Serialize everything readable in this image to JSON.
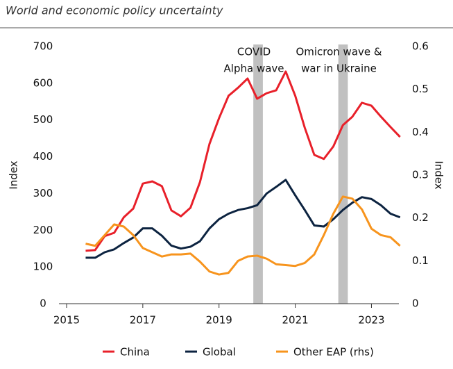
{
  "chart_data": {
    "type": "line",
    "title": "World and economic policy uncertainty",
    "ylabel": "Index",
    "y2label": "Index",
    "x": [
      2015.5,
      2015.75,
      2016,
      2016.25,
      2016.5,
      2016.75,
      2017,
      2017.25,
      2017.5,
      2017.75,
      2018,
      2018.25,
      2018.5,
      2018.75,
      2019,
      2019.25,
      2019.5,
      2019.75,
      2020,
      2020.25,
      2020.5,
      2020.75,
      2021,
      2021.25,
      2021.5,
      2021.75,
      2022,
      2022.25,
      2022.5,
      2022.75,
      2023,
      2023.25,
      2023.5,
      2023.75
    ],
    "series": [
      {
        "name": "China",
        "color": "#e8202a",
        "values": [
          144,
          146,
          184,
          193,
          235,
          259,
          327,
          333,
          320,
          254,
          238,
          261,
          331,
          435,
          505,
          566,
          588,
          613,
          558,
          573,
          581,
          632,
          566,
          479,
          405,
          394,
          428,
          486,
          509,
          547,
          539,
          509,
          481,
          454
        ]
      },
      {
        "name": "Global",
        "color": "#0c2340",
        "values": [
          125,
          125,
          140,
          148,
          165,
          180,
          205,
          205,
          185,
          158,
          150,
          155,
          170,
          205,
          230,
          245,
          255,
          260,
          268,
          300,
          318,
          337,
          295,
          255,
          213,
          210,
          230,
          255,
          275,
          290,
          285,
          268,
          245,
          235
        ]
      },
      {
        "name": "Other EAP (rhs)",
        "color": "#f7941d",
        "axis": "y2",
        "values": [
          0.14,
          0.135,
          0.16,
          0.185,
          0.18,
          0.16,
          0.13,
          0.12,
          0.11,
          0.115,
          0.115,
          0.117,
          0.098,
          0.075,
          0.068,
          0.072,
          0.1,
          0.11,
          0.112,
          0.105,
          0.092,
          0.09,
          0.088,
          0.095,
          0.115,
          0.16,
          0.21,
          0.25,
          0.245,
          0.22,
          0.175,
          0.16,
          0.155,
          0.135
        ]
      }
    ],
    "shaded_regions": [
      {
        "x": [
          2019.9,
          2020.15
        ],
        "color": "#c0c0c0",
        "label": [
          "COVID",
          "Alpha wave"
        ]
      },
      {
        "x": [
          2022.13,
          2022.38
        ],
        "color": "#c0c0c0",
        "label": [
          "Omicron wave &",
          "war in Ukraine"
        ]
      }
    ],
    "xlim": [
      2014.8,
      2023.72
    ],
    "xticks": [
      2015,
      2017,
      2019,
      2021,
      2023
    ],
    "ylim": [
      0,
      700
    ],
    "yticks": [
      0,
      100,
      200,
      300,
      400,
      500,
      600,
      700
    ],
    "y2lim": [
      0,
      0.6
    ],
    "y2ticks": [
      0,
      0.1,
      0.2,
      0.3,
      0.4,
      0.5,
      0.6
    ],
    "legend": "bottom"
  }
}
